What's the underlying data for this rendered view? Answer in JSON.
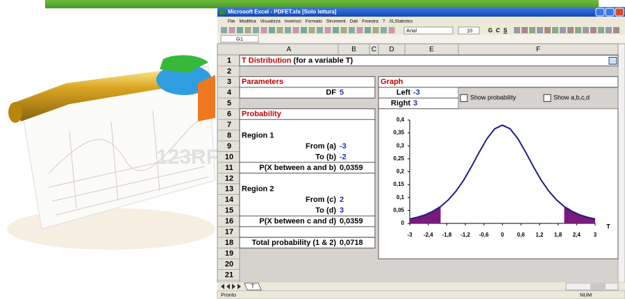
{
  "window": {
    "title": "Microsoft Excel - PDFET.xls  [Solo lettura]",
    "menu": [
      "File",
      "Modifica",
      "Visualizza",
      "Inserisci",
      "Formato",
      "Strumenti",
      "Dati",
      "Finestra",
      "?",
      "XLStatistics"
    ],
    "font": "Arial",
    "font_size": 10,
    "bold": "G",
    "italic": "C",
    "underline": "S",
    "name_box": "G1",
    "columns": [
      "A",
      "B",
      "C",
      "D",
      "E",
      "F"
    ],
    "rows": [
      1,
      2,
      3,
      4,
      5,
      6,
      7,
      8,
      9,
      10,
      11,
      12,
      13,
      14,
      15,
      16,
      17,
      18,
      19,
      20,
      21
    ],
    "sheet_tab": "T",
    "status": "Pronto",
    "num_lock": "NUM"
  },
  "watermark": "123RF",
  "sheet": {
    "title_red": "T Distribution",
    "title_rest": " (for a variable T)",
    "parameters": "Parameters",
    "df_label": "DF",
    "df": 5,
    "graph": "Graph",
    "left_label": "Left",
    "left": -3,
    "right_label": "Right",
    "right": 3,
    "show_probability": "Show probability",
    "show_abcd": "Show a,b,c,d",
    "probability": "Probability",
    "region1": "Region 1",
    "from_a_label": "From (a)",
    "from_a": -3,
    "to_b_label": "To (b)",
    "to_b": -2,
    "p1_label": "P(X between a and b)",
    "p1": "0,0359",
    "region2": "Region 2",
    "from_c_label": "From (c)",
    "from_c": 2,
    "to_d_label": "To (d)",
    "to_d": 3,
    "p2_label": "P(X between c and d)",
    "p2": "0,0359",
    "total_label": "Total probability (1 & 2)",
    "total": "0,0718"
  },
  "chart_data": {
    "type": "line",
    "x_label": "T",
    "x": [
      -3,
      -2.75,
      -2.5,
      -2.25,
      -2,
      -1.75,
      -1.5,
      -1.25,
      -1,
      -0.75,
      -0.5,
      -0.25,
      0,
      0.25,
      0.5,
      0.75,
      1,
      1.25,
      1.5,
      1.75,
      2,
      2.25,
      2.5,
      2.75,
      3
    ],
    "series": [
      {
        "color": "#1a1a8c",
        "values": [
          0.017,
          0.024,
          0.033,
          0.047,
          0.065,
          0.091,
          0.125,
          0.168,
          0.22,
          0.276,
          0.328,
          0.366,
          0.38,
          0.366,
          0.328,
          0.276,
          0.22,
          0.168,
          0.125,
          0.091,
          0.065,
          0.047,
          0.033,
          0.024,
          0.017
        ]
      }
    ],
    "shade_color": "#7a1a7a",
    "xlim": [
      -3,
      3
    ],
    "ylim": [
      0,
      0.4
    ],
    "xticks": [
      -3,
      {
        "value": -2.4,
        "label": "-2,4"
      },
      {
        "value": -1.8,
        "label": "-1,8"
      },
      {
        "value": -1.2,
        "label": "-1,2"
      },
      {
        "value": -0.6,
        "label": "-0,6"
      },
      0,
      {
        "value": 0.6,
        "label": "0,6"
      },
      {
        "value": 1.2,
        "label": "1,2"
      },
      {
        "value": 1.8,
        "label": "1,8"
      },
      {
        "value": 2.4,
        "label": "2,4"
      },
      3
    ],
    "yticks": [
      0,
      {
        "value": 0.05,
        "label": "0,05"
      },
      {
        "value": 0.1,
        "label": "0,1"
      },
      {
        "value": 0.15,
        "label": "0,15"
      },
      {
        "value": 0.2,
        "label": "0,2"
      },
      {
        "value": 0.25,
        "label": "0,25"
      },
      {
        "value": 0.3,
        "label": "0,3"
      },
      {
        "value": 0.35,
        "label": "0,35"
      },
      {
        "value": 0.4,
        "label": "0,4"
      }
    ]
  }
}
